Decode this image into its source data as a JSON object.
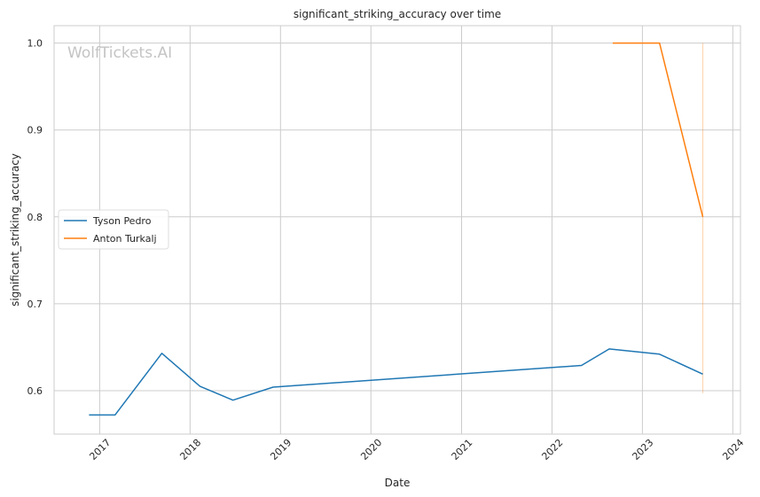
{
  "watermark": "WolfTickets.AI",
  "chart_data": {
    "type": "line",
    "title": "significant_striking_accuracy over time",
    "xlabel": "Date",
    "ylabel": "significant_striking_accuracy",
    "xlim": [
      "2016-07-01",
      "2024-02-01"
    ],
    "ylim": [
      0.55,
      1.02
    ],
    "x_ticks": [
      "2017",
      "2018",
      "2019",
      "2020",
      "2021",
      "2022",
      "2023",
      "2024"
    ],
    "y_ticks": [
      "0.6",
      "0.7",
      "0.8",
      "0.9",
      "1.0"
    ],
    "grid": true,
    "legend_position": "center-left",
    "series": [
      {
        "name": "Tyson Pedro",
        "color": "#1f77b4",
        "points": [
          {
            "x": "2016-11-19",
            "y": 0.572
          },
          {
            "x": "2017-03-04",
            "y": 0.572
          },
          {
            "x": "2017-09-09",
            "y": 0.643
          },
          {
            "x": "2018-02-10",
            "y": 0.605
          },
          {
            "x": "2018-06-23",
            "y": 0.589
          },
          {
            "x": "2018-12-02",
            "y": 0.604
          },
          {
            "x": "2022-04-30",
            "y": 0.629
          },
          {
            "x": "2022-08-20",
            "y": 0.648
          },
          {
            "x": "2023-03-11",
            "y": 0.642
          },
          {
            "x": "2023-09-02",
            "y": 0.619
          }
        ]
      },
      {
        "name": "Anton Turkalj",
        "color": "#ff7f0e",
        "points": [
          {
            "x": "2022-09-03",
            "y": 1.0
          },
          {
            "x": "2023-03-11",
            "y": 1.0
          },
          {
            "x": "2023-09-02",
            "y": 0.8
          }
        ]
      }
    ],
    "annotations": [
      {
        "type": "vertical-line",
        "x": "2023-09-02",
        "y_from": 0.597,
        "y_to": 1.0,
        "color": "#ff7f0e"
      }
    ]
  }
}
